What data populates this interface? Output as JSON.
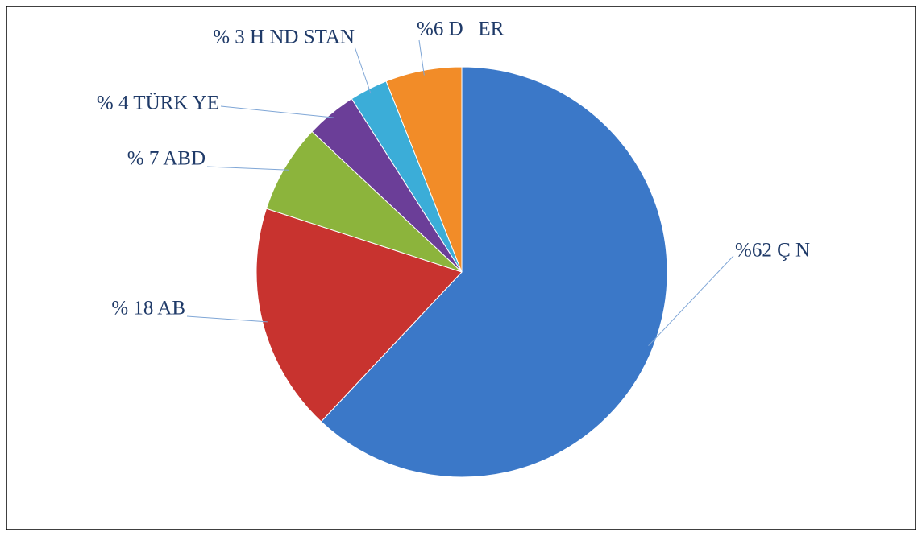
{
  "chart_data": {
    "type": "pie",
    "values": [
      62,
      18,
      7,
      4,
      3,
      6
    ],
    "value_labels": [
      "%62 Ç N",
      "% 18 AB",
      "% 7 ABD",
      "% 4 TÜRK YE",
      "% 3 H ND STAN",
      "%6 D   ER"
    ],
    "colors": [
      "#3b78c8",
      "#c8332f",
      "#8cb43c",
      "#6b3e98",
      "#3badd8",
      "#f28c28"
    ]
  }
}
